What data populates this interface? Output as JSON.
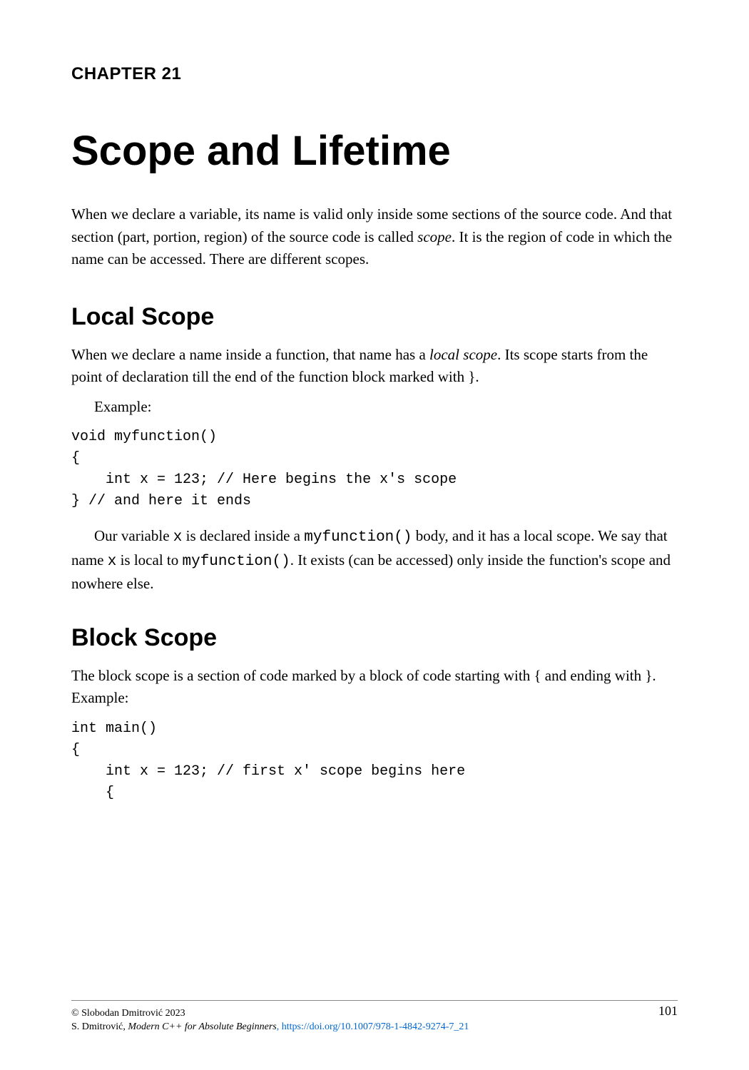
{
  "chapter": {
    "label": "CHAPTER 21",
    "title": "Scope and Lifetime"
  },
  "intro": {
    "text_before_italic": "When we declare a variable, its name is valid only inside some sections of the source code. And that section (part, portion, region) of the source code is called ",
    "italic_word": "scope",
    "text_after_italic": ". It is the region of code in which the name can be accessed. There are different scopes."
  },
  "section1": {
    "heading": "Local Scope",
    "para_before_italic": "When we declare a name inside a function, that name has a ",
    "para_italic": "local scope",
    "para_after_italic": ". Its scope starts from the point of declaration till the end of the function block marked with }.",
    "example_label": "Example:",
    "code": "void myfunction()\n{\n    int x = 123; // Here begins the x's scope\n} // and here it ends",
    "para2_seg1": "Our variable ",
    "para2_code1": "x",
    "para2_seg2": " is declared inside a ",
    "para2_code2": "myfunction()",
    "para2_seg3": " body, and it has a local scope. We say that name ",
    "para2_code3": "x",
    "para2_seg4": " is local to ",
    "para2_code4": "myfunction()",
    "para2_seg5": ". It exists (can be accessed) only inside the function's scope and nowhere else."
  },
  "section2": {
    "heading": "Block Scope",
    "para": "The block scope is a section of code marked by a block of code starting with { and ending with }. Example:",
    "code": "int main()\n{\n    int x = 123; // first x' scope begins here\n    {"
  },
  "footer": {
    "copyright": "© Slobodan Dmitrović 2023",
    "citation_author": "S. Dmitrović, ",
    "citation_title": "Modern C++ for Absolute Beginners",
    "citation_link": ", https://doi.org/10.1007/978-1-4842-9274-7_21"
  },
  "page_number": "101"
}
